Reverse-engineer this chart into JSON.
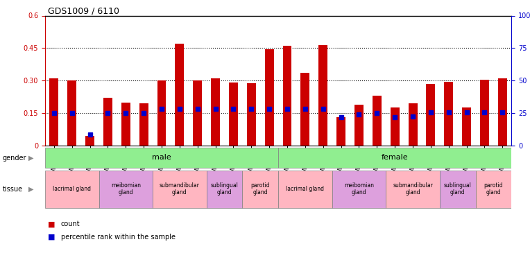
{
  "title": "GDS1009 / 6110",
  "samples": [
    "GSM27176",
    "GSM27177",
    "GSM27178",
    "GSM27181",
    "GSM27182",
    "GSM27183",
    "GSM25995",
    "GSM25996",
    "GSM25997",
    "GSM26000",
    "GSM26001",
    "GSM26004",
    "GSM26005",
    "GSM27173",
    "GSM27174",
    "GSM27175",
    "GSM27179",
    "GSM27180",
    "GSM27184",
    "GSM25992",
    "GSM25993",
    "GSM25994",
    "GSM25998",
    "GSM25999",
    "GSM26002",
    "GSM26003"
  ],
  "count_values": [
    0.31,
    0.3,
    0.045,
    0.22,
    0.2,
    0.195,
    0.3,
    0.47,
    0.3,
    0.31,
    0.29,
    0.288,
    0.445,
    0.46,
    0.335,
    0.465,
    0.13,
    0.19,
    0.23,
    0.175,
    0.195,
    0.285,
    0.295,
    0.175,
    0.305,
    0.31
  ],
  "percentile_values": [
    0.15,
    0.15,
    0.05,
    0.15,
    0.15,
    0.15,
    0.17,
    0.17,
    0.17,
    0.17,
    0.17,
    0.17,
    0.17,
    0.17,
    0.17,
    0.17,
    0.13,
    0.145,
    0.15,
    0.13,
    0.135,
    0.155,
    0.155,
    0.155,
    0.155,
    0.155
  ],
  "gender_groups": [
    {
      "label": "male",
      "start": 0,
      "end": 13,
      "color": "#90ee90"
    },
    {
      "label": "female",
      "start": 13,
      "end": 26,
      "color": "#90ee90"
    }
  ],
  "tissue_groups": [
    {
      "label": "lacrimal gland",
      "start": 0,
      "end": 3,
      "color": "#ffb6c1"
    },
    {
      "label": "meibomian\ngland",
      "start": 3,
      "end": 6,
      "color": "#dda0dd"
    },
    {
      "label": "submandibular\ngland",
      "start": 6,
      "end": 9,
      "color": "#ffb6c1"
    },
    {
      "label": "sublingual\ngland",
      "start": 9,
      "end": 11,
      "color": "#dda0dd"
    },
    {
      "label": "parotid\ngland",
      "start": 11,
      "end": 13,
      "color": "#ffb6c1"
    },
    {
      "label": "lacrimal gland",
      "start": 13,
      "end": 16,
      "color": "#ffb6c1"
    },
    {
      "label": "meibomian\ngland",
      "start": 16,
      "end": 19,
      "color": "#dda0dd"
    },
    {
      "label": "submandibular\ngland",
      "start": 19,
      "end": 22,
      "color": "#ffb6c1"
    },
    {
      "label": "sublingual\ngland",
      "start": 22,
      "end": 24,
      "color": "#dda0dd"
    },
    {
      "label": "parotid\ngland",
      "start": 24,
      "end": 26,
      "color": "#ffb6c1"
    }
  ],
  "bar_color": "#cc0000",
  "percentile_color": "#0000cc",
  "ylim_left": [
    0,
    0.6
  ],
  "ylim_right": [
    0,
    100
  ],
  "yticks_left": [
    0,
    0.15,
    0.3,
    0.45,
    0.6
  ],
  "yticks_right": [
    0,
    25,
    50,
    75,
    100
  ],
  "ytick_labels_left": [
    "0",
    "0.15",
    "0.30",
    "0.45",
    "0.6"
  ],
  "ytick_labels_right": [
    "0",
    "25",
    "50",
    "75",
    "100%"
  ],
  "hlines": [
    0.15,
    0.3,
    0.45
  ]
}
